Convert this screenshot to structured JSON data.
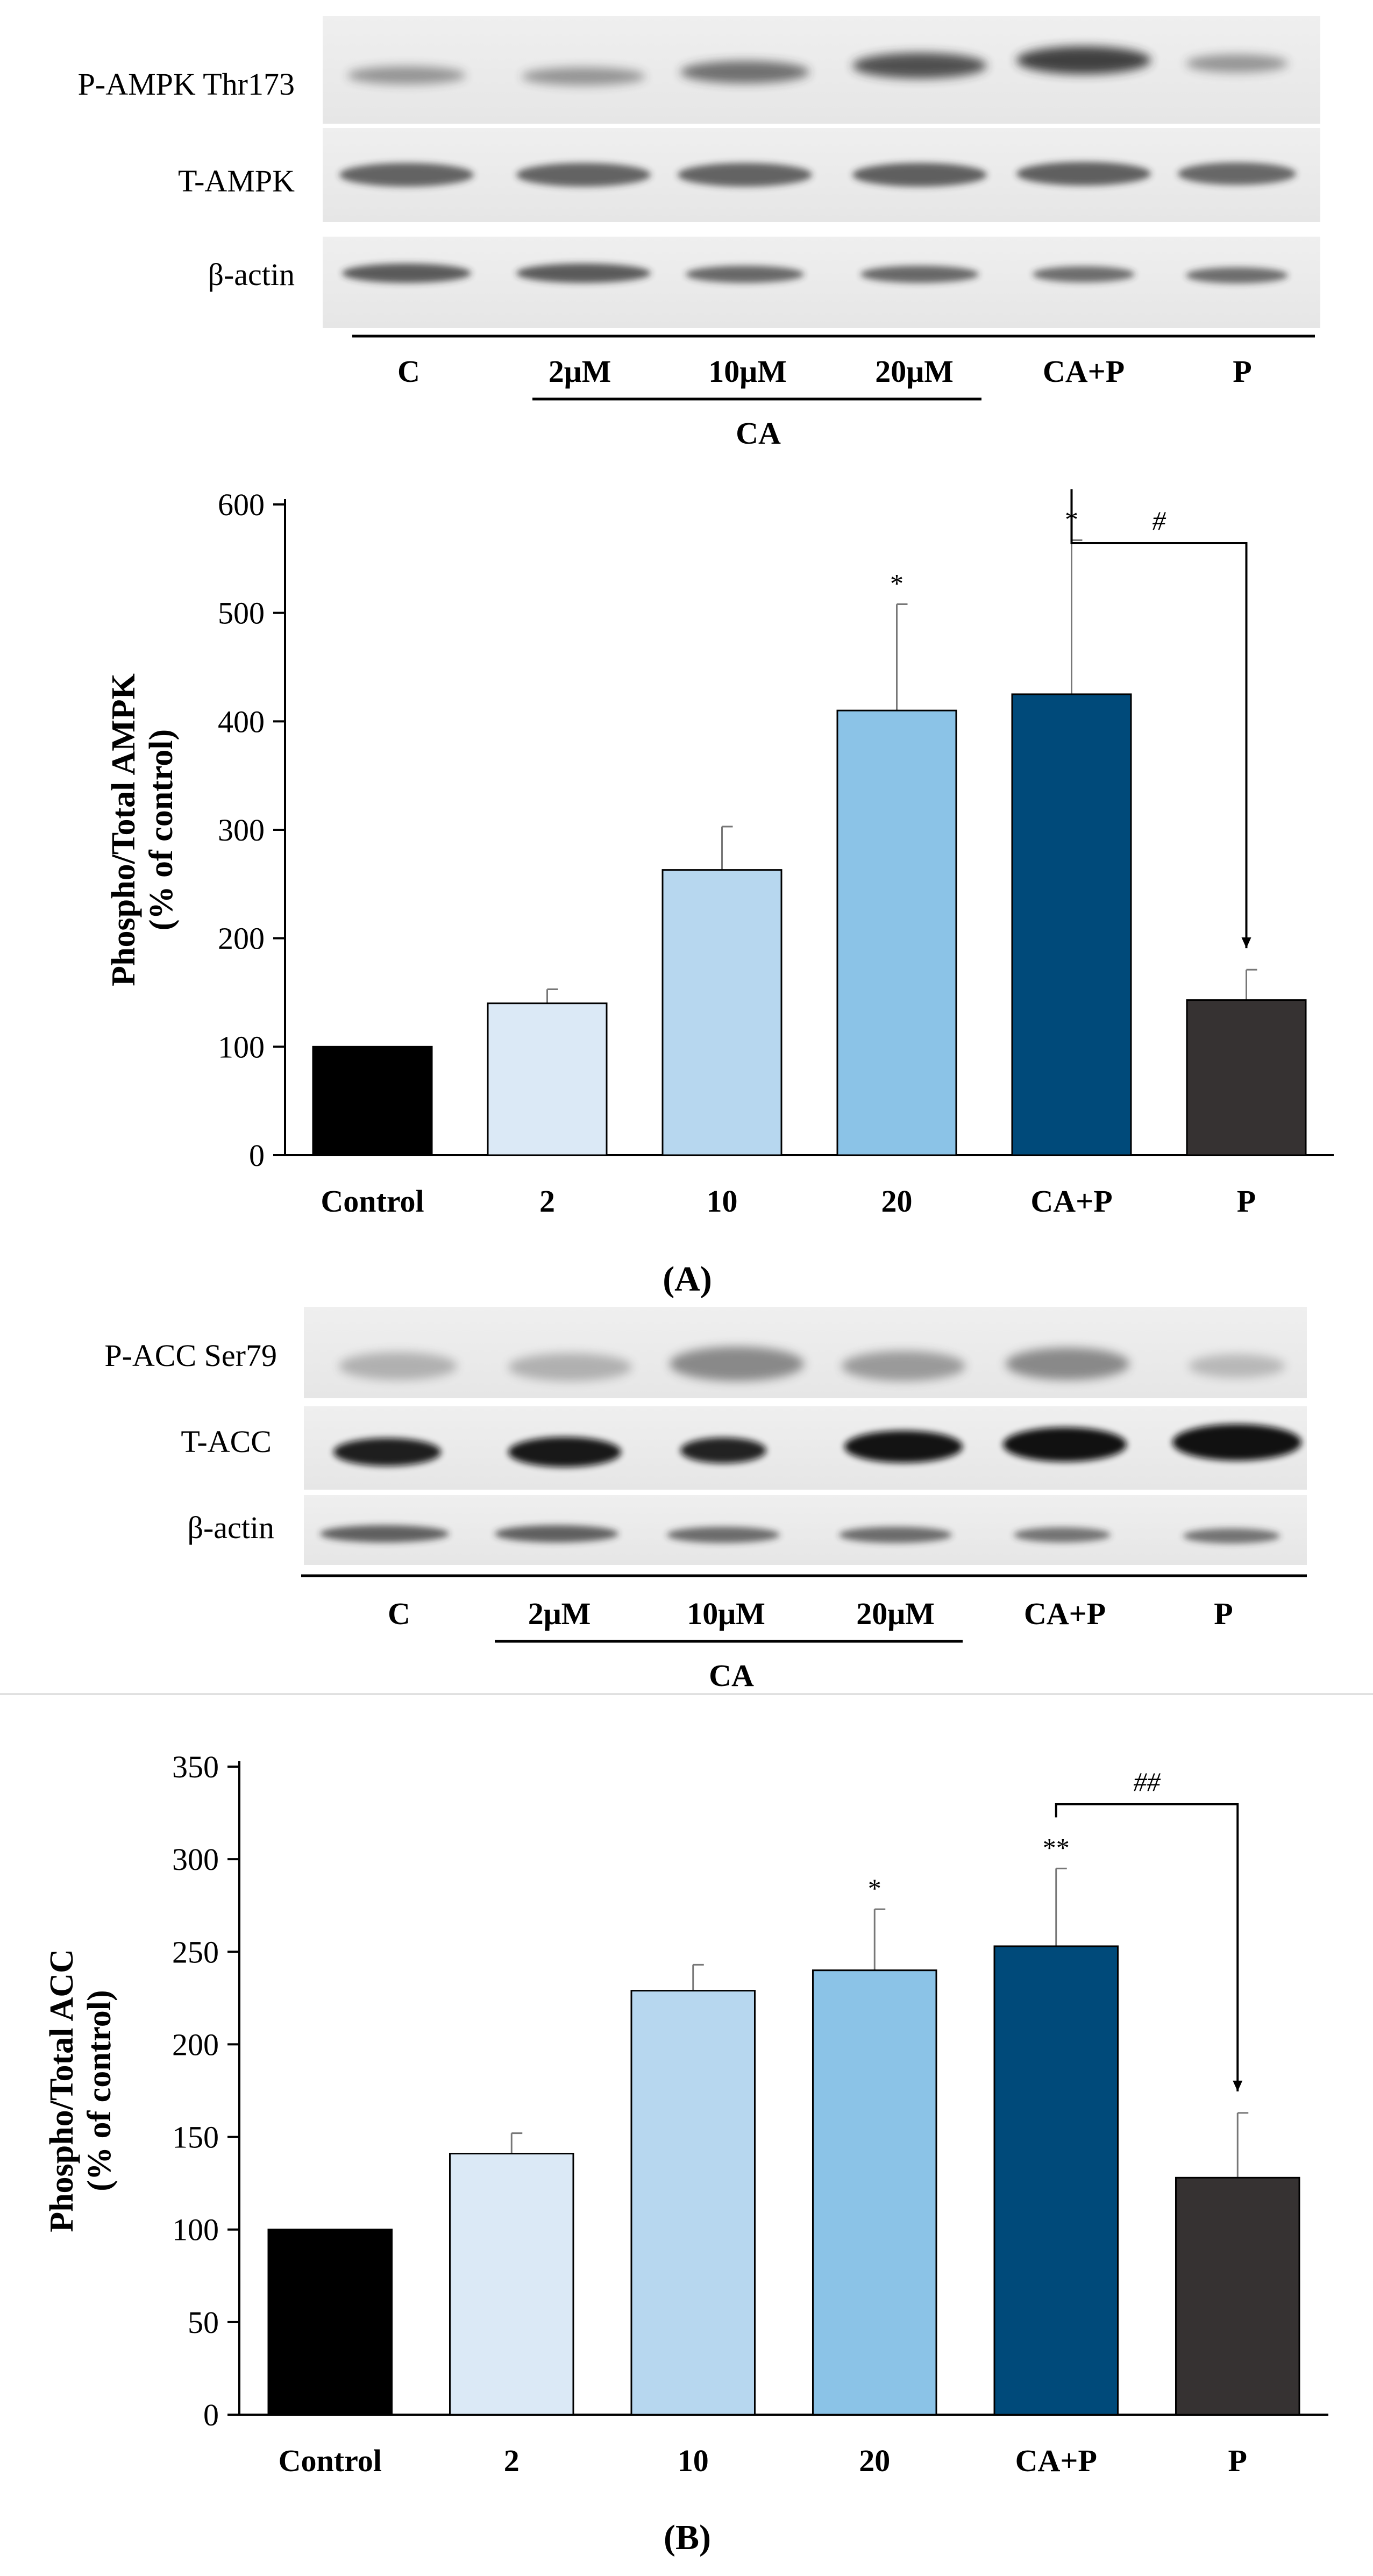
{
  "panelA": {
    "blot": {
      "rows": [
        "P-AMPK Thr173",
        "T-AMPK",
        "β-actin"
      ],
      "lanes": [
        "C",
        "2μM",
        "10μM",
        "20μM",
        "CA+P",
        "P"
      ],
      "group_label": "CA"
    },
    "panel_label": "(A)",
    "panel_letter": "A"
  },
  "panelB": {
    "blot": {
      "rows": [
        "P-ACC Ser79",
        "T-ACC",
        "β-actin"
      ],
      "lanes": [
        "C",
        "2μM",
        "10μM",
        "20μM",
        "CA+P",
        "P"
      ],
      "group_label": "CA"
    },
    "panel_label": "(B)",
    "panel_letter": "B"
  },
  "chart_data": [
    {
      "type": "bar",
      "categories": [
        "Control",
        "2",
        "10",
        "20",
        "CA+P",
        "P"
      ],
      "values": [
        100,
        140,
        263,
        410,
        425,
        143
      ],
      "errors": [
        0,
        13,
        40,
        98,
        142,
        28
      ],
      "colors": [
        "#000000",
        "#dbe9f6",
        "#b7d7ef",
        "#8bc3e7",
        "#004a7a",
        "#363232"
      ],
      "significance": [
        "",
        "",
        "",
        "*",
        "*",
        ""
      ],
      "bracket": {
        "from": "CA+P",
        "to": "P",
        "label": "#"
      },
      "ylabel_line1": "Phospho/Total AMPK",
      "ylabel_line2": "(% of control)",
      "xlabel": "",
      "yticks": [
        0,
        100,
        200,
        300,
        400,
        500,
        600
      ],
      "ylim": [
        0,
        600
      ]
    },
    {
      "type": "bar",
      "categories": [
        "Control",
        "2",
        "10",
        "20",
        "CA+P",
        "P"
      ],
      "values": [
        100,
        141,
        229,
        240,
        253,
        128
      ],
      "errors": [
        0,
        11,
        14,
        33,
        42,
        35
      ],
      "colors": [
        "#000000",
        "#dbe9f6",
        "#b7d7ef",
        "#8bc3e7",
        "#004a7a",
        "#363232"
      ],
      "significance": [
        "",
        "",
        "",
        "*",
        "**",
        ""
      ],
      "bracket": {
        "from": "CA+P",
        "to": "P",
        "label": "##"
      },
      "ylabel_line1": "Phospho/Total ACC",
      "ylabel_line2": "(% of control)",
      "xlabel": "",
      "yticks": [
        0,
        50,
        100,
        150,
        200,
        250,
        300,
        350
      ],
      "ylim": [
        0,
        350
      ]
    }
  ]
}
